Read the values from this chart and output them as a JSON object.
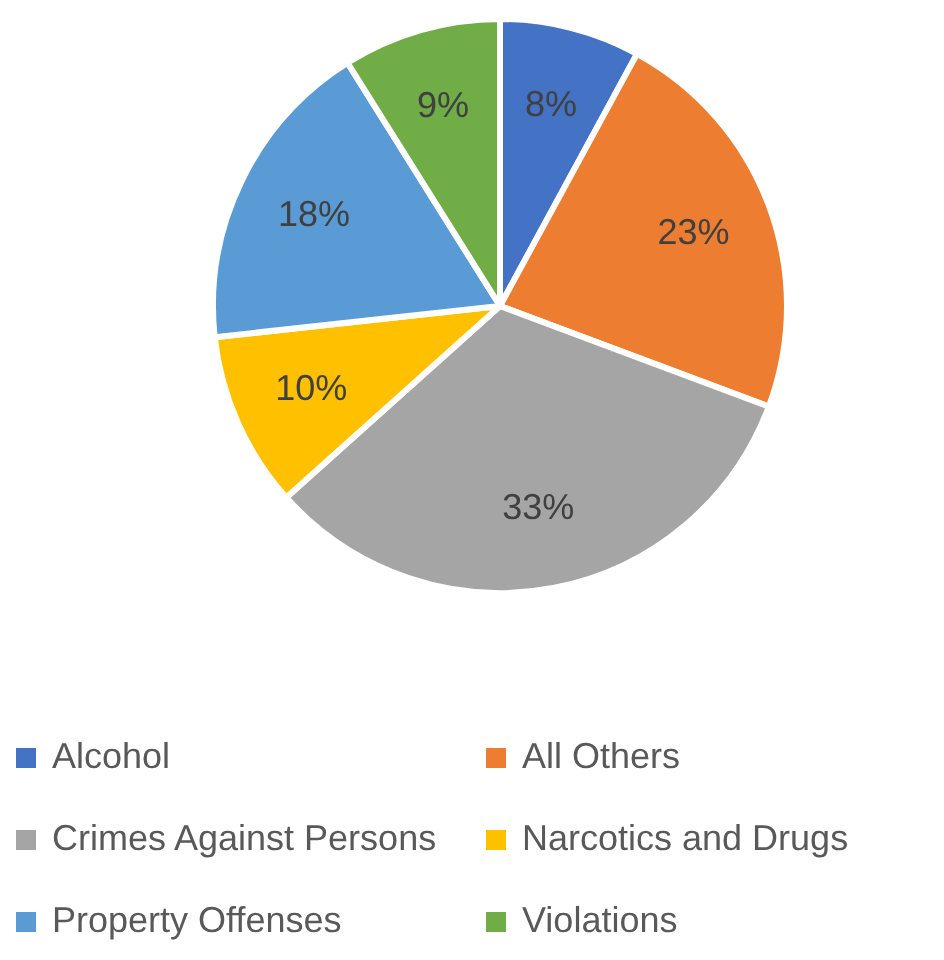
{
  "chart_data": {
    "type": "pie",
    "categories": [
      "Alcohol",
      "All Others",
      "Crimes Against Persons",
      "Narcotics and Drugs",
      "Property Offenses",
      "Violations"
    ],
    "values": [
      8,
      23,
      33,
      10,
      18,
      9
    ],
    "colors": [
      "#4472c4",
      "#ed7d31",
      "#a5a5a5",
      "#ffc000",
      "#5b9bd5",
      "#70ad47"
    ],
    "value_labels": [
      "8%",
      "23%",
      "33%",
      "10%",
      "18%",
      "9%"
    ],
    "legend": "bottom"
  }
}
